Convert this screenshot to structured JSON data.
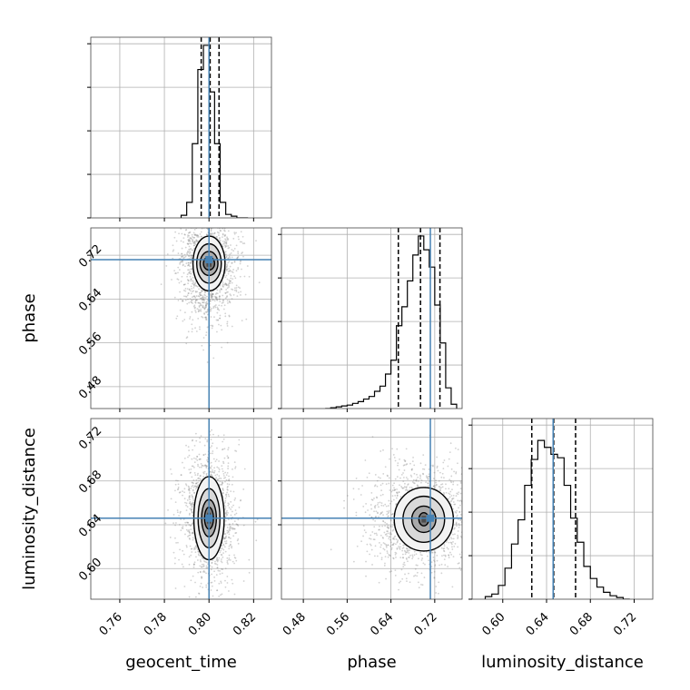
{
  "chart_data": {
    "type": "corner",
    "parameters": [
      "geocent_time",
      "phase",
      "luminosity_distance"
    ],
    "axis_labels": {
      "x": [
        "geocent_time",
        "phase",
        "luminosity_distance"
      ],
      "y": [
        "phase",
        "luminosity_distance"
      ]
    },
    "ranges": {
      "geocent_time": [
        0.747,
        0.828
      ],
      "phase": [
        0.44,
        0.77
      ],
      "luminosity_distance": [
        0.572,
        0.737
      ]
    },
    "ticks": {
      "geocent_time": [
        "0.76",
        "0.78",
        "0.80",
        "0.82"
      ],
      "phase": [
        "0.48",
        "0.56",
        "0.64",
        "0.72"
      ],
      "luminosity_distance": [
        "0.60",
        "0.64",
        "0.68",
        "0.72"
      ]
    },
    "truths": {
      "geocent_time": 0.8,
      "phase": 0.712,
      "luminosity_distance": 0.646
    },
    "quantiles": {
      "geocent_time": [
        0.7965,
        0.8005,
        0.8045
      ],
      "phase": [
        0.6535,
        0.694,
        0.7295
      ],
      "luminosity_distance": [
        0.6265,
        0.6465,
        0.6665
      ]
    },
    "histograms": {
      "geocent_time": {
        "bins": [
          0.7875,
          0.79,
          0.7925,
          0.795,
          0.7975,
          0.8,
          0.8025,
          0.805,
          0.8075,
          0.81,
          0.8125,
          0.815,
          0.8175
        ],
        "counts": [
          0.015,
          0.09,
          0.43,
          0.86,
          1.0,
          0.73,
          0.43,
          0.09,
          0.02,
          0.01,
          0.0,
          0.0
        ]
      },
      "phase": {
        "bins": [
          0.52,
          0.53,
          0.54,
          0.55,
          0.56,
          0.57,
          0.58,
          0.59,
          0.6,
          0.61,
          0.62,
          0.63,
          0.64,
          0.65,
          0.66,
          0.67,
          0.68,
          0.69,
          0.7,
          0.71,
          0.72,
          0.73,
          0.74,
          0.75,
          0.76
        ],
        "counts": [
          0.0,
          0.005,
          0.01,
          0.015,
          0.02,
          0.03,
          0.04,
          0.055,
          0.07,
          0.1,
          0.13,
          0.2,
          0.28,
          0.48,
          0.59,
          0.74,
          0.89,
          1.0,
          0.92,
          0.82,
          0.6,
          0.38,
          0.12,
          0.025
        ]
      },
      "luminosity_distance": {
        "bins": [
          0.584,
          0.59,
          0.596,
          0.602,
          0.608,
          0.614,
          0.62,
          0.626,
          0.632,
          0.638,
          0.644,
          0.65,
          0.656,
          0.662,
          0.668,
          0.674,
          0.68,
          0.686,
          0.692,
          0.698,
          0.704,
          0.71,
          0.716
        ],
        "counts": [
          0.015,
          0.03,
          0.08,
          0.18,
          0.32,
          0.46,
          0.66,
          0.81,
          0.92,
          0.88,
          0.84,
          0.82,
          0.66,
          0.47,
          0.33,
          0.19,
          0.12,
          0.07,
          0.04,
          0.02,
          0.01,
          0.0
        ]
      }
    },
    "contours": {
      "geocent_time|phase": {
        "center": [
          0.8,
          0.705
        ],
        "half_widths": [
          [
            0.0025,
            0.012
          ],
          [
            0.004,
            0.022
          ],
          [
            0.0055,
            0.036
          ],
          [
            0.0072,
            0.05
          ]
        ]
      },
      "geocent_time|luminosity_distance": {
        "center": [
          0.8,
          0.646
        ],
        "half_widths": [
          [
            0.002,
            0.01
          ],
          [
            0.0033,
            0.017
          ],
          [
            0.0049,
            0.027
          ],
          [
            0.0068,
            0.038
          ]
        ]
      },
      "phase|luminosity_distance": {
        "center": [
          0.7,
          0.645
        ],
        "half_widths": [
          [
            0.009,
            0.006
          ],
          [
            0.022,
            0.012
          ],
          [
            0.038,
            0.021
          ],
          [
            0.054,
            0.029
          ]
        ]
      }
    },
    "scatter": {
      "geocent_time|phase": {
        "center": [
          0.8,
          0.698
        ],
        "spread": [
          0.0065,
          0.052
        ]
      },
      "geocent_time|luminosity_distance": {
        "center": [
          0.8,
          0.646
        ],
        "spread": [
          0.006,
          0.03
        ]
      },
      "phase|luminosity_distance": {
        "center": [
          0.695,
          0.646
        ],
        "spread": [
          0.05,
          0.025
        ]
      }
    },
    "colors": {
      "truth": "#4682b4",
      "contour_line": "#000000",
      "quantile_line": "#000000",
      "grid": "#b0b0b0",
      "scatter": "#7f7f7f",
      "fill_levels": [
        "#4d4d4d",
        "#7a7a7a",
        "#aaaaaa",
        "#d9d9d9",
        "#f3f3f3"
      ]
    },
    "grid": true
  }
}
